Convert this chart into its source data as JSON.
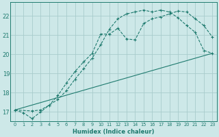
{
  "xlabel": "Humidex (Indice chaleur)",
  "ylabel": "",
  "bg_color": "#cde8e8",
  "grid_color": "#a8cccc",
  "line_color": "#1e7a6e",
  "xlim": [
    -0.5,
    23.5
  ],
  "ylim": [
    16.5,
    22.7
  ],
  "xtick_vals": [
    0,
    1,
    2,
    3,
    4,
    5,
    6,
    7,
    8,
    9,
    10,
    11,
    12,
    13,
    14,
    15,
    16,
    17,
    18,
    19,
    20,
    21,
    22,
    23
  ],
  "ytick_vals": [
    17,
    18,
    19,
    20,
    21,
    22
  ],
  "line1_x": [
    0,
    1,
    2,
    3,
    4,
    5,
    6,
    7,
    8,
    9,
    10,
    11,
    12,
    13,
    14,
    15,
    16,
    17,
    18,
    19,
    20,
    21,
    22,
    23
  ],
  "line1_y": [
    17.1,
    16.95,
    16.65,
    17.0,
    17.35,
    17.85,
    18.5,
    19.1,
    19.6,
    20.05,
    21.05,
    21.05,
    21.35,
    20.8,
    20.75,
    21.6,
    21.85,
    21.95,
    22.1,
    22.25,
    22.2,
    21.85,
    21.5,
    20.9
  ],
  "line2_x": [
    0,
    2,
    3,
    4,
    5,
    6,
    7,
    8,
    9,
    10,
    11,
    12,
    13,
    14,
    15,
    16,
    17,
    18,
    19,
    20,
    21,
    22,
    23
  ],
  "line2_y": [
    17.1,
    17.05,
    17.1,
    17.35,
    17.65,
    18.1,
    18.7,
    19.25,
    19.8,
    20.5,
    21.3,
    21.85,
    22.1,
    22.2,
    22.3,
    22.2,
    22.3,
    22.2,
    21.9,
    21.5,
    21.15,
    20.2,
    20.05
  ],
  "line3_x": [
    0,
    23
  ],
  "line3_y": [
    17.1,
    20.05
  ]
}
